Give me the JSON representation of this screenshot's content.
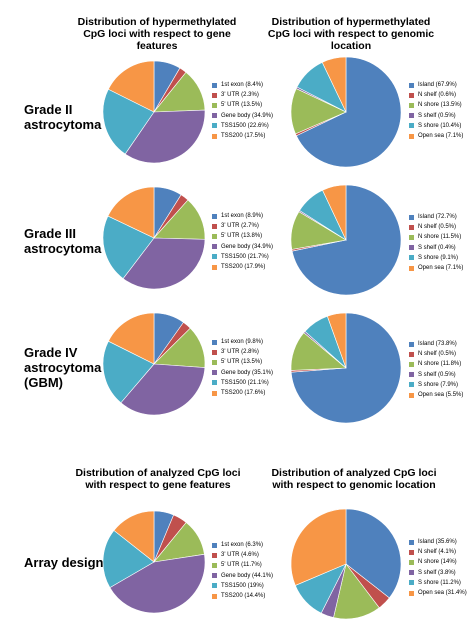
{
  "headers": {
    "top_left": [
      "Distribution of hypermethylated",
      "CpG loci with respect to gene",
      "features"
    ],
    "top_right": [
      "Distribution of hypermethylated",
      "CpG loci with respect to genomic",
      "location"
    ],
    "bottom_left": [
      "Distribution of analyzed CpG loci",
      "with respect to gene features"
    ],
    "bottom_right": [
      "Distribution of analyzed  CpG loci",
      "with respect to genomic location"
    ]
  },
  "row_labels": {
    "grade2": [
      "Grade II",
      "astrocytoma"
    ],
    "grade3": [
      "Grade III",
      "astrocytoma"
    ],
    "grade4": [
      "Grade IV",
      "astrocytoma",
      "(GBM)"
    ],
    "array": [
      "Array design"
    ]
  },
  "colors": {
    "gene_features": [
      "#4f81bd",
      "#c0504d",
      "#9bbb59",
      "#8064a2",
      "#4bacc6",
      "#f79646"
    ],
    "genomic_location": [
      "#4f81bd",
      "#c0504d",
      "#9bbb59",
      "#8064a2",
      "#4bacc6",
      "#f79646"
    ]
  },
  "chart_data": [
    {
      "type": "pie",
      "id": "g2-gene",
      "categories": [
        "1st exon",
        "3' UTR",
        "5' UTR",
        "Gene body",
        "TSS1500",
        "TSS200"
      ],
      "values": [
        8.4,
        2.3,
        13.5,
        34.9,
        22.6,
        17.5
      ],
      "legend": [
        "1st exon (8.4%)",
        "3' UTR (2.3%)",
        "5' UTR (13.5%)",
        "Gene body (34.9%)",
        "TSS1500 (22.6%)",
        "TSS200 (17.5%)"
      ]
    },
    {
      "type": "pie",
      "id": "g2-loc",
      "categories": [
        "Island",
        "N shelf",
        "N shore",
        "S shelf",
        "S shore",
        "Open sea"
      ],
      "values": [
        67.9,
        0.6,
        13.5,
        0.5,
        10.4,
        7.1
      ],
      "legend": [
        "Island (67.9%)",
        "N shelf (0.6%)",
        "N shore (13.5%)",
        "S shelf (0.5%)",
        "S shore (10.4%)",
        "Open sea (7.1%)"
      ]
    },
    {
      "type": "pie",
      "id": "g3-gene",
      "categories": [
        "1st exon",
        "3' UTR",
        "5' UTR",
        "Gene body",
        "TSS1500",
        "TSS200"
      ],
      "values": [
        8.9,
        2.7,
        13.8,
        34.9,
        21.7,
        17.9
      ],
      "legend": [
        "1st exon (8.9%)",
        "3' UTR (2.7%)",
        "5' UTR (13.8%)",
        "Gene body (34.9%)",
        "TSS1500 (21.7%)",
        "TSS200 (17.9%)"
      ]
    },
    {
      "type": "pie",
      "id": "g3-loc",
      "categories": [
        "Island",
        "N shelf",
        "N shore",
        "S shelf",
        "S shore",
        "Open sea"
      ],
      "values": [
        72.7,
        0.5,
        11.5,
        0.4,
        9.1,
        7.1
      ],
      "legend": [
        "Island (72.7%)",
        "N shelf (0.5%)",
        "N shore (11.5%)",
        "S shelf (0.4%)",
        "S shore (9.1%)",
        "Open sea (7.1%)"
      ]
    },
    {
      "type": "pie",
      "id": "g4-gene",
      "categories": [
        "1st exon",
        "3' UTR",
        "5' UTR",
        "Gene body",
        "TSS1500",
        "TSS200"
      ],
      "values": [
        9.8,
        2.8,
        13.5,
        35.1,
        21.1,
        17.6
      ],
      "legend": [
        "1st exon (9.8%)",
        "3' UTR (2.8%)",
        "5' UTR (13.5%)",
        "Gene body (35.1%)",
        "TSS1500 (21.1%)",
        "TSS200 (17.6%)"
      ]
    },
    {
      "type": "pie",
      "id": "g4-loc",
      "categories": [
        "Island",
        "N shelf",
        "N shore",
        "S shelf",
        "S shore",
        "Open sea"
      ],
      "values": [
        73.8,
        0.5,
        11.8,
        0.5,
        7.9,
        5.5
      ],
      "legend": [
        "Island (73.8%)",
        "N shelf (0.5%)",
        "N shore (11.8%)",
        "S shelf (0.5%)",
        "S shore (7.9%)",
        "Open sea (5.5%)"
      ]
    },
    {
      "type": "pie",
      "id": "arr-gene",
      "categories": [
        "1st exon",
        "3' UTR",
        "5' UTR",
        "Gene body",
        "TSS1500",
        "TSS200"
      ],
      "values": [
        6.3,
        4.6,
        11.7,
        44.1,
        19,
        14.4
      ],
      "legend": [
        "1st exon (6.3%)",
        "3' UTR (4.6%)",
        "5' UTR (11.7%)",
        "Gene body (44.1%)",
        "TSS1500 (19%)",
        "TSS200 (14.4%)"
      ]
    },
    {
      "type": "pie",
      "id": "arr-loc",
      "categories": [
        "Island",
        "N shelf",
        "N shore",
        "S shelf",
        "S shore",
        "Open sea"
      ],
      "values": [
        35.6,
        4.1,
        14,
        3.8,
        11.2,
        31.4
      ],
      "legend": [
        "Island (35.6%)",
        "N shelf (4.1%)",
        "N shore (14%)",
        "S shelf (3.8%)",
        "S shore (11.2%)",
        "Open sea (31.4%)"
      ]
    }
  ]
}
